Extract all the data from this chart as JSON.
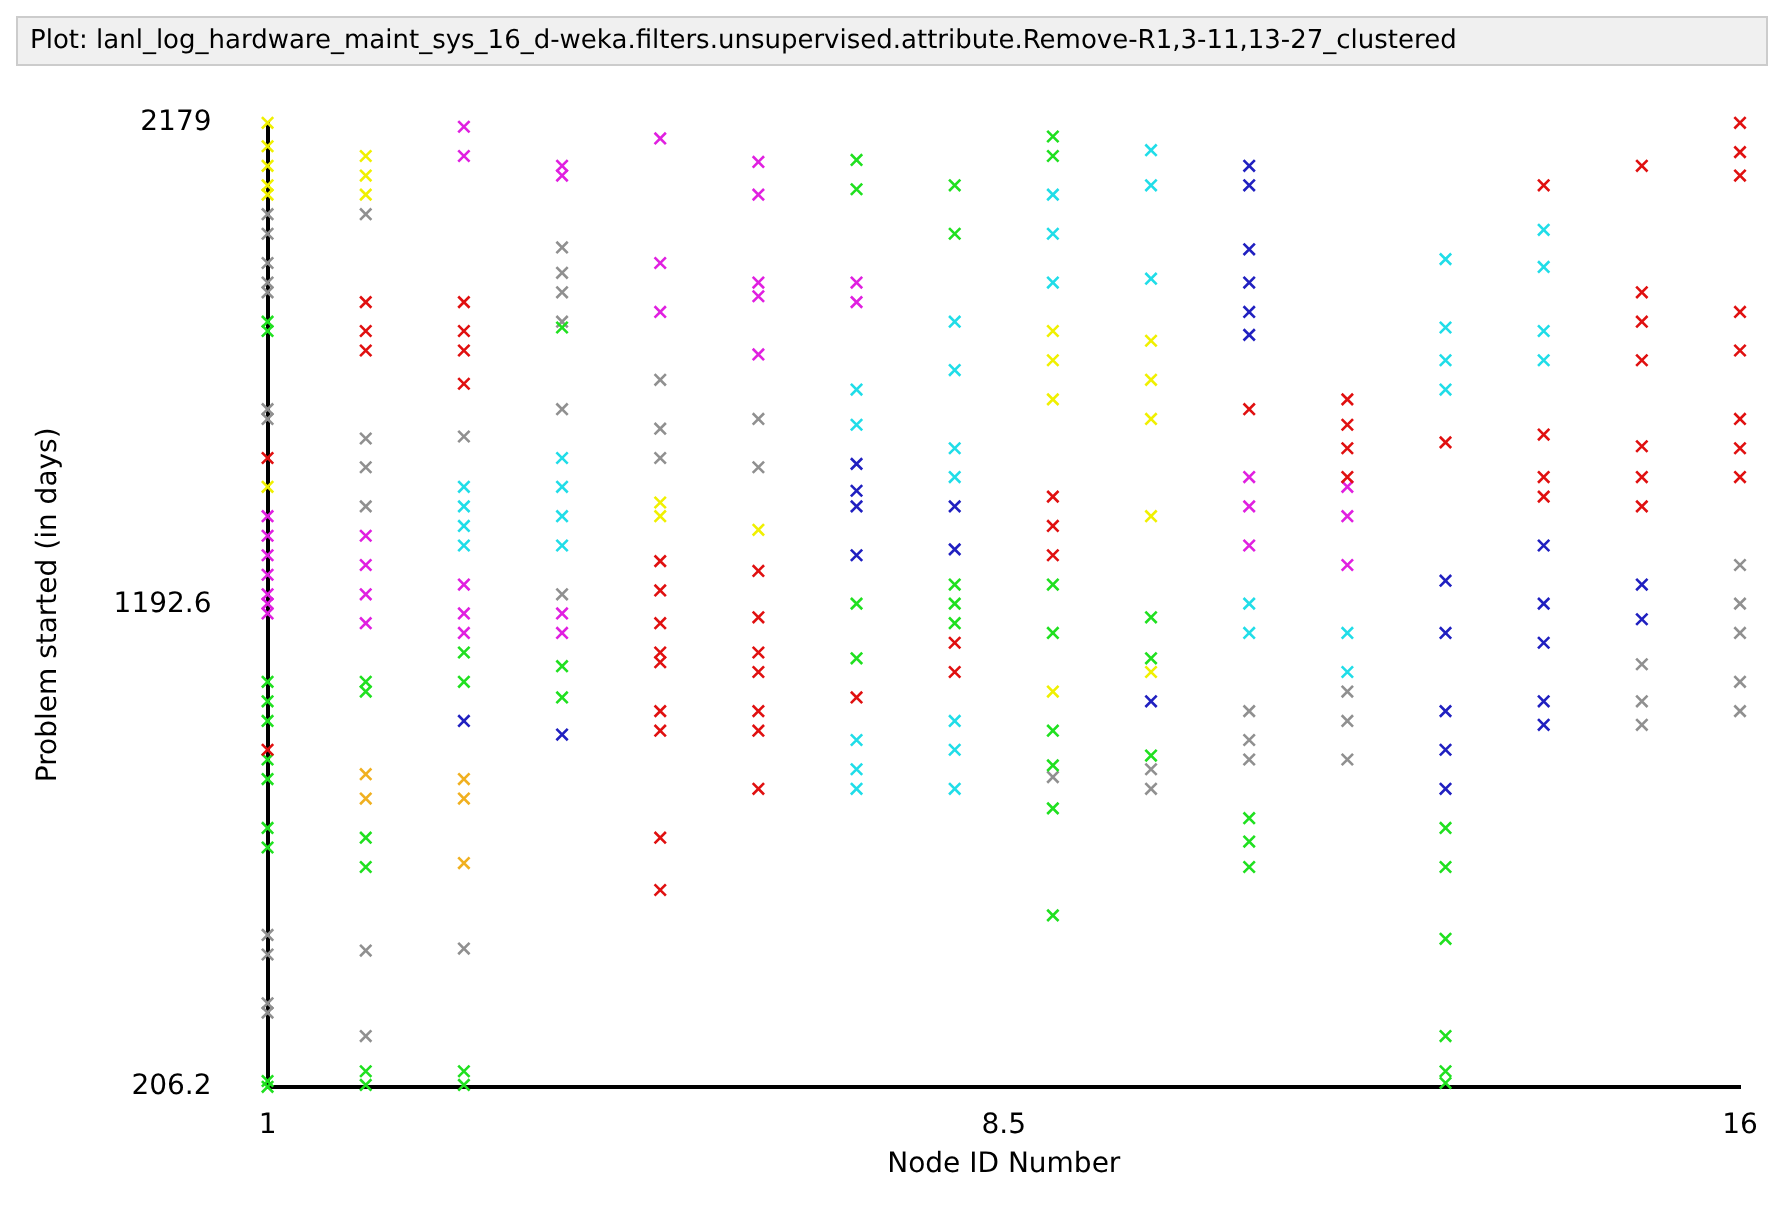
{
  "chart_data": {
    "type": "scatter",
    "title": "Plot: lanl_log_hardware_maint_sys_16_d-weka.filters.unsupervised.attribute.Remove-R1,3-11,13-27_clustered",
    "xlabel": "Node ID Number",
    "ylabel": "Problem started (in days)",
    "xlim": [
      1,
      16
    ],
    "xticks": [
      1,
      8.5,
      16
    ],
    "ylim": [
      206.2,
      2179
    ],
    "yticks": [
      206.2,
      1192.6,
      2179
    ],
    "grid": false,
    "legend": false,
    "marker": "cross",
    "series": [
      {
        "color": "#e01010",
        "x": [
          1,
          1,
          2,
          2,
          2,
          3,
          3,
          3,
          3,
          5,
          5,
          5,
          5,
          5,
          5,
          5,
          5,
          5,
          6,
          6,
          6,
          6,
          6,
          6,
          6,
          7,
          8,
          8,
          9,
          9,
          9,
          11,
          12,
          12,
          12,
          12,
          13,
          14,
          14,
          14,
          14,
          15,
          15,
          15,
          15,
          15,
          15,
          15,
          16,
          16,
          16,
          16,
          16,
          16,
          16,
          16
        ],
        "values": [
          1493,
          896,
          1812,
          1753,
          1713,
          1812,
          1753,
          1713,
          1645,
          1282,
          1222,
          1155,
          1095,
          1075,
          975,
          935,
          716,
          609,
          1262,
          1167,
          1095,
          1055,
          975,
          935,
          816,
          1003,
          1115,
          1055,
          1414,
          1354,
          1294,
          1593,
          1613,
          1561,
          1513,
          1454,
          1525,
          2051,
          1541,
          1454,
          1414,
          2091,
          1832,
          1772,
          1693,
          1517,
          1454,
          1394,
          2179,
          2119,
          2071,
          1792,
          1713,
          1573,
          1513,
          1454
        ]
      },
      {
        "color": "#2020c0",
        "x": [
          3,
          4,
          7,
          7,
          7,
          7,
          8,
          8,
          10,
          11,
          11,
          11,
          11,
          11,
          11,
          13,
          13,
          13,
          13,
          13,
          14,
          14,
          14,
          14,
          14,
          15,
          15
        ],
        "values": [
          955,
          927,
          1481,
          1426,
          1394,
          1294,
          1394,
          1306,
          995,
          2091,
          2051,
          1920,
          1852,
          1792,
          1745,
          1242,
          1135,
          975,
          896,
          816,
          1314,
          1195,
          1115,
          995,
          947,
          1234,
          1163
        ]
      },
      {
        "color": "#20dde8",
        "x": [
          3,
          3,
          3,
          3,
          4,
          4,
          4,
          4,
          7,
          7,
          7,
          7,
          7,
          8,
          8,
          8,
          8,
          8,
          8,
          8,
          9,
          9,
          9,
          10,
          10,
          10,
          11,
          11,
          12,
          12,
          13,
          13,
          13,
          13,
          14,
          14,
          14,
          14
        ],
        "values": [
          1434,
          1394,
          1354,
          1314,
          1493,
          1434,
          1374,
          1314,
          1633,
          1561,
          916,
          856,
          816,
          1772,
          1673,
          1513,
          1454,
          955,
          896,
          816,
          2032,
          1952,
          1852,
          2123,
          2051,
          1860,
          1195,
          1135,
          1135,
          1055,
          1900,
          1760,
          1693,
          1633,
          1960,
          1884,
          1753,
          1693
        ]
      },
      {
        "color": "#e020e0",
        "x": [
          1,
          1,
          1,
          1,
          1,
          1,
          1,
          2,
          2,
          2,
          2,
          3,
          3,
          3,
          3,
          3,
          4,
          4,
          4,
          4,
          5,
          5,
          5,
          6,
          6,
          6,
          6,
          6,
          7,
          7,
          11,
          11,
          11,
          12,
          12,
          12
        ],
        "values": [
          1374,
          1334,
          1294,
          1254,
          1214,
          1195,
          1175,
          1334,
          1274,
          1214,
          1155,
          2171,
          2111,
          1234,
          1175,
          1135,
          2091,
          2071,
          1175,
          1135,
          2147,
          1892,
          1792,
          2099,
          2032,
          1852,
          1824,
          1705,
          1852,
          1812,
          1454,
          1394,
          1314,
          1434,
          1374,
          1274
        ]
      },
      {
        "color": "#20e020",
        "x": [
          1,
          1,
          1,
          1,
          1,
          1,
          1,
          1,
          1,
          1,
          1,
          2,
          2,
          2,
          2,
          2,
          2,
          3,
          3,
          3,
          3,
          4,
          4,
          4,
          7,
          7,
          7,
          7,
          8,
          8,
          8,
          8,
          8,
          9,
          9,
          9,
          9,
          9,
          9,
          9,
          9,
          10,
          10,
          10,
          11,
          11,
          11,
          13,
          13,
          13,
          13,
          13,
          13
        ],
        "values": [
          1772,
          1753,
          1035,
          995,
          955,
          876,
          836,
          736,
          696,
          218,
          206.2,
          1035,
          1015,
          716,
          656,
          238,
          210,
          1095,
          1035,
          238,
          210,
          1760,
          1067,
          1003,
          2103,
          2043,
          1195,
          1083,
          2051,
          1952,
          1234,
          1195,
          1155,
          2151,
          2111,
          1234,
          1135,
          935,
          864,
          776,
          557,
          1167,
          1083,
          884,
          756,
          708,
          656,
          736,
          656,
          509,
          310,
          238,
          214
        ]
      },
      {
        "color": "#f0f000",
        "x": [
          1,
          1,
          1,
          1,
          1,
          1,
          2,
          2,
          2,
          5,
          5,
          6,
          9,
          9,
          9,
          9,
          10,
          10,
          10,
          10,
          10
        ],
        "values": [
          2179,
          2131,
          2091,
          2051,
          2032,
          1434,
          2111,
          2071,
          2032,
          1402,
          1374,
          1346,
          1753,
          1693,
          1613,
          1015,
          1733,
          1653,
          1573,
          1374,
          1055
        ]
      },
      {
        "color": "#909090",
        "x": [
          1,
          1,
          1,
          1,
          1,
          1,
          1,
          1,
          1,
          1,
          1,
          2,
          2,
          2,
          2,
          2,
          2,
          3,
          3,
          4,
          4,
          4,
          4,
          4,
          4,
          5,
          5,
          5,
          6,
          6,
          9,
          10,
          10,
          11,
          11,
          11,
          12,
          12,
          12,
          15,
          15,
          15,
          16,
          16,
          16,
          16,
          16
        ],
        "values": [
          1992,
          1952,
          1892,
          1852,
          1832,
          1593,
          1573,
          517,
          477,
          377,
          358,
          1992,
          1533,
          1474,
          1394,
          485,
          310,
          1537,
          489,
          1924,
          1872,
          1832,
          1772,
          1593,
          1214,
          1653,
          1553,
          1493,
          1573,
          1474,
          840,
          856,
          816,
          975,
          916,
          876,
          1015,
          955,
          876,
          1071,
          995,
          947,
          1274,
          1195,
          1135,
          1035,
          975
        ]
      },
      {
        "color": "#f0b020",
        "x": [
          2,
          2,
          3,
          3,
          3
        ],
        "values": [
          846,
          796,
          836,
          796,
          664
        ]
      }
    ]
  }
}
